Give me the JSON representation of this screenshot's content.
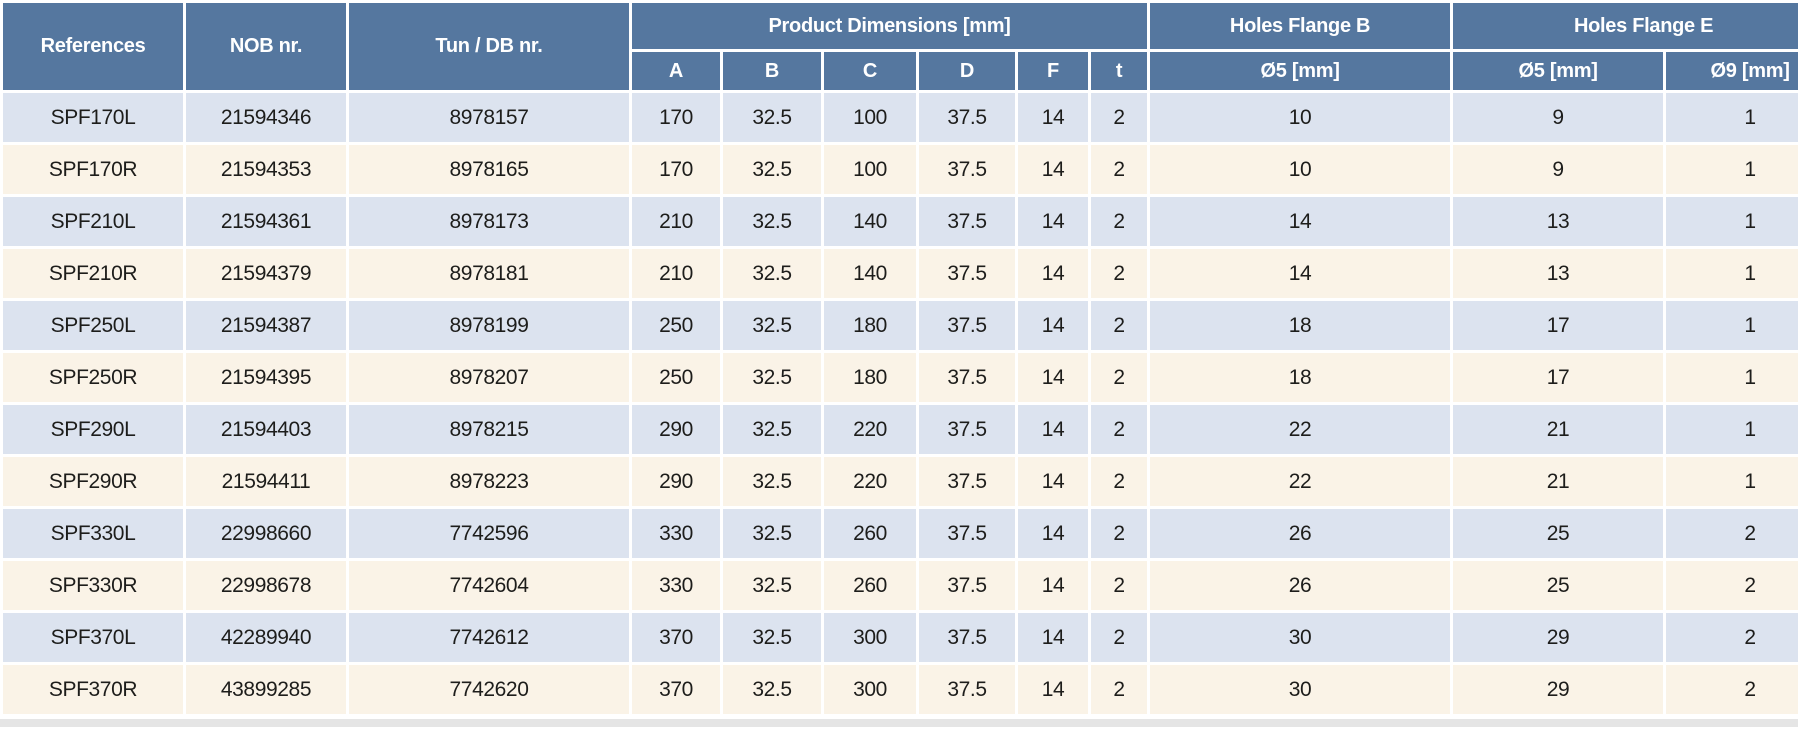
{
  "colors": {
    "header_bg": "#55779f",
    "row_blue_bg": "#dce3ef",
    "row_cream_bg": "#faf3e7",
    "header_text": "#ffffff",
    "cell_text": "#1d1d1b",
    "bottom_strip_bg": "#e5e5e5",
    "page_bg": "#ffffff"
  },
  "table": {
    "header": {
      "references": "References",
      "nob": "NOB nr.",
      "tun_db": "Tun / DB nr.",
      "product_dimensions": "Product Dimensions [mm]",
      "dim_subcolumns": [
        "A",
        "B",
        "C",
        "D",
        "F",
        "t"
      ],
      "holes_flange_b": "Holes Flange B",
      "holes_b_sub": "Ø5 [mm]",
      "holes_flange_e": "Holes Flange E",
      "holes_e_sub": [
        "Ø5 [mm]",
        "Ø9 [mm]"
      ]
    },
    "rows": [
      {
        "reference": "SPF170L",
        "nob": "21594346",
        "tun_db": "8978157",
        "a": "170",
        "b": "32.5",
        "c": "100",
        "d": "37.5",
        "f": "14",
        "t": "2",
        "holes_b_o5": "10",
        "holes_e_o5": "9",
        "holes_e_o9": "1"
      },
      {
        "reference": "SPF170R",
        "nob": "21594353",
        "tun_db": "8978165",
        "a": "170",
        "b": "32.5",
        "c": "100",
        "d": "37.5",
        "f": "14",
        "t": "2",
        "holes_b_o5": "10",
        "holes_e_o5": "9",
        "holes_e_o9": "1"
      },
      {
        "reference": "SPF210L",
        "nob": "21594361",
        "tun_db": "8978173",
        "a": "210",
        "b": "32.5",
        "c": "140",
        "d": "37.5",
        "f": "14",
        "t": "2",
        "holes_b_o5": "14",
        "holes_e_o5": "13",
        "holes_e_o9": "1"
      },
      {
        "reference": "SPF210R",
        "nob": "21594379",
        "tun_db": "8978181",
        "a": "210",
        "b": "32.5",
        "c": "140",
        "d": "37.5",
        "f": "14",
        "t": "2",
        "holes_b_o5": "14",
        "holes_e_o5": "13",
        "holes_e_o9": "1"
      },
      {
        "reference": "SPF250L",
        "nob": "21594387",
        "tun_db": "8978199",
        "a": "250",
        "b": "32.5",
        "c": "180",
        "d": "37.5",
        "f": "14",
        "t": "2",
        "holes_b_o5": "18",
        "holes_e_o5": "17",
        "holes_e_o9": "1"
      },
      {
        "reference": "SPF250R",
        "nob": "21594395",
        "tun_db": "8978207",
        "a": "250",
        "b": "32.5",
        "c": "180",
        "d": "37.5",
        "f": "14",
        "t": "2",
        "holes_b_o5": "18",
        "holes_e_o5": "17",
        "holes_e_o9": "1"
      },
      {
        "reference": "SPF290L",
        "nob": "21594403",
        "tun_db": "8978215",
        "a": "290",
        "b": "32.5",
        "c": "220",
        "d": "37.5",
        "f": "14",
        "t": "2",
        "holes_b_o5": "22",
        "holes_e_o5": "21",
        "holes_e_o9": "1"
      },
      {
        "reference": "SPF290R",
        "nob": "21594411",
        "tun_db": "8978223",
        "a": "290",
        "b": "32.5",
        "c": "220",
        "d": "37.5",
        "f": "14",
        "t": "2",
        "holes_b_o5": "22",
        "holes_e_o5": "21",
        "holes_e_o9": "1"
      },
      {
        "reference": "SPF330L",
        "nob": "22998660",
        "tun_db": "7742596",
        "a": "330",
        "b": "32.5",
        "c": "260",
        "d": "37.5",
        "f": "14",
        "t": "2",
        "holes_b_o5": "26",
        "holes_e_o5": "25",
        "holes_e_o9": "2"
      },
      {
        "reference": "SPF330R",
        "nob": "22998678",
        "tun_db": "7742604",
        "a": "330",
        "b": "32.5",
        "c": "260",
        "d": "37.5",
        "f": "14",
        "t": "2",
        "holes_b_o5": "26",
        "holes_e_o5": "25",
        "holes_e_o9": "2"
      },
      {
        "reference": "SPF370L",
        "nob": "42289940",
        "tun_db": "7742612",
        "a": "370",
        "b": "32.5",
        "c": "300",
        "d": "37.5",
        "f": "14",
        "t": "2",
        "holes_b_o5": "30",
        "holes_e_o5": "29",
        "holes_e_o9": "2"
      },
      {
        "reference": "SPF370R",
        "nob": "43899285",
        "tun_db": "7742620",
        "a": "370",
        "b": "32.5",
        "c": "300",
        "d": "37.5",
        "f": "14",
        "t": "2",
        "holes_b_o5": "30",
        "holes_e_o5": "29",
        "holes_e_o9": "2"
      }
    ]
  }
}
